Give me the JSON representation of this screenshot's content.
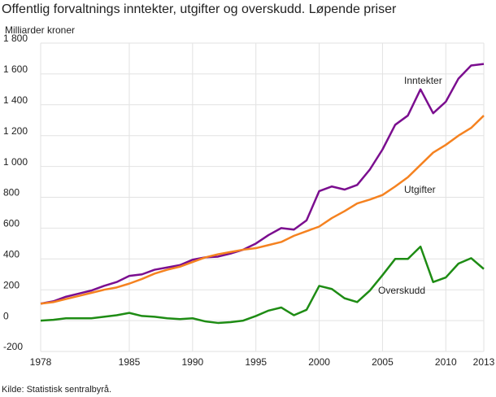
{
  "chart_data": {
    "type": "line",
    "title": "Offentlig forvaltnings inntekter, utgifter og overskudd. Løpende priser",
    "y_label": "Milliarder kroner",
    "source": "Kilde: Statistisk sentralbyrå.",
    "x": [
      1978,
      1979,
      1980,
      1981,
      1982,
      1983,
      1984,
      1985,
      1986,
      1987,
      1988,
      1989,
      1990,
      1991,
      1992,
      1993,
      1994,
      1995,
      1996,
      1997,
      1998,
      1999,
      2000,
      2001,
      2002,
      2003,
      2004,
      2005,
      2006,
      2007,
      2008,
      2009,
      2010,
      2011,
      2012,
      2013
    ],
    "series": [
      {
        "name": "Inntekter",
        "color": "#7b0e8f",
        "values": [
          110,
          125,
          155,
          175,
          195,
          225,
          250,
          290,
          300,
          330,
          345,
          360,
          395,
          410,
          415,
          435,
          460,
          500,
          555,
          600,
          590,
          650,
          840,
          870,
          850,
          880,
          980,
          1110,
          1270,
          1330,
          1500,
          1345,
          1420,
          1570,
          1655,
          1665
        ]
      },
      {
        "name": "Utgifter",
        "color": "#f58220",
        "values": [
          110,
          120,
          140,
          160,
          180,
          200,
          215,
          240,
          270,
          305,
          330,
          350,
          380,
          410,
          430,
          445,
          460,
          470,
          490,
          510,
          550,
          580,
          610,
          665,
          710,
          760,
          785,
          815,
          870,
          930,
          1010,
          1090,
          1140,
          1200,
          1250,
          1330
        ]
      },
      {
        "name": "Overskudd",
        "color": "#1e8c14",
        "values": [
          0,
          5,
          15,
          15,
          15,
          25,
          35,
          50,
          30,
          25,
          15,
          10,
          15,
          -5,
          -15,
          -10,
          0,
          30,
          65,
          85,
          35,
          70,
          225,
          205,
          145,
          120,
          195,
          295,
          400,
          400,
          480,
          250,
          280,
          370,
          405,
          335
        ]
      }
    ],
    "xlim": [
      1978,
      2013
    ],
    "xticks": [
      1978,
      1985,
      1990,
      1995,
      2000,
      2005,
      2010,
      2013
    ],
    "ylim": [
      -200,
      1800
    ],
    "yticks": [
      -200,
      0,
      200,
      400,
      600,
      800,
      {
        "value": 1000,
        "label": "1 000"
      },
      {
        "value": 1200,
        "label": "1 200"
      },
      {
        "value": 1400,
        "label": "1 400"
      },
      {
        "value": 1600,
        "label": "1 600"
      },
      {
        "value": 1800,
        "label": "1 800"
      }
    ],
    "grid": true
  }
}
